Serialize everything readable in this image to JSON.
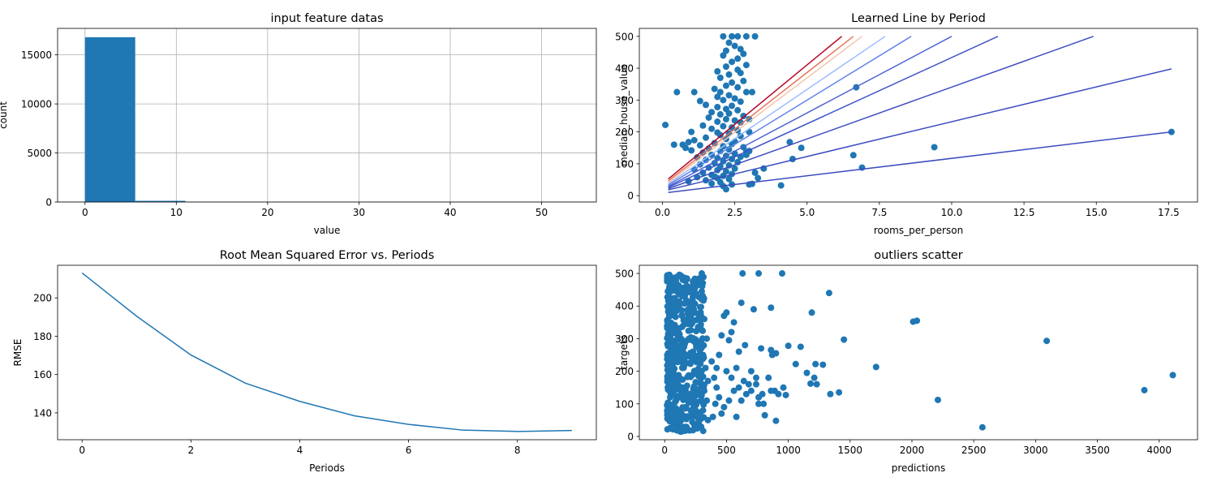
{
  "chart_data": [
    {
      "type": "bar",
      "title": "input feature datas",
      "xlabel": "value",
      "ylabel": "count",
      "xlim": [
        -3,
        56
      ],
      "ylim": [
        0,
        17700
      ],
      "xticks": [
        0,
        10,
        20,
        30,
        40,
        50
      ],
      "yticks": [
        0,
        5000,
        10000,
        15000
      ],
      "grid": true,
      "bins": [
        {
          "x0": 0.0,
          "x1": 5.5,
          "count": 16800
        },
        {
          "x0": 5.5,
          "x1": 11.0,
          "count": 120
        },
        {
          "x0": 11.0,
          "x1": 16.5,
          "count": 12
        },
        {
          "x0": 16.5,
          "x1": 22.0,
          "count": 4
        },
        {
          "x0": 22.0,
          "x1": 27.5,
          "count": 2
        },
        {
          "x0": 27.5,
          "x1": 33.0,
          "count": 1
        },
        {
          "x0": 33.0,
          "x1": 38.5,
          "count": 1
        },
        {
          "x0": 38.5,
          "x1": 44.0,
          "count": 0
        },
        {
          "x0": 44.0,
          "x1": 49.5,
          "count": 0
        },
        {
          "x0": 49.5,
          "x1": 55.0,
          "count": 1
        }
      ],
      "color": "#1f77b4"
    },
    {
      "type": "scatter",
      "title": "Learned Line by Period",
      "xlabel": "rooms_per_person",
      "ylabel": "median_house_value",
      "xlim": [
        -0.8,
        18.5
      ],
      "ylim": [
        -20,
        525
      ],
      "xticks": [
        0.0,
        2.5,
        5.0,
        7.5,
        10.0,
        12.5,
        15.0,
        17.5
      ],
      "xtick_labels": [
        "0.0",
        "2.5",
        "5.0",
        "7.5",
        "10.0",
        "12.5",
        "15.0",
        "17.5"
      ],
      "yticks": [
        0,
        100,
        200,
        300,
        400,
        500
      ],
      "points": [
        [
          2.4,
          500
        ],
        [
          2.6,
          500
        ],
        [
          2.1,
          500
        ],
        [
          2.9,
          500
        ],
        [
          3.2,
          500
        ],
        [
          2.3,
          480
        ],
        [
          2.5,
          470
        ],
        [
          2.7,
          460
        ],
        [
          2.2,
          455
        ],
        [
          2.8,
          445
        ],
        [
          2.1,
          440
        ],
        [
          2.6,
          430
        ],
        [
          2.4,
          420
        ],
        [
          2.9,
          410
        ],
        [
          2.2,
          405
        ],
        [
          2.6,
          395
        ],
        [
          1.9,
          390
        ],
        [
          2.7,
          385
        ],
        [
          2.3,
          380
        ],
        [
          2.0,
          370
        ],
        [
          2.8,
          360
        ],
        [
          2.4,
          355
        ],
        [
          2.2,
          345
        ],
        [
          2.6,
          340
        ],
        [
          1.8,
          335
        ],
        [
          0.5,
          325
        ],
        [
          1.1,
          325
        ],
        [
          2.0,
          325
        ],
        [
          2.9,
          325
        ],
        [
          3.1,
          325
        ],
        [
          2.3,
          315
        ],
        [
          1.9,
          310
        ],
        [
          2.5,
          305
        ],
        [
          2.1,
          300
        ],
        [
          1.3,
          297
        ],
        [
          2.7,
          295
        ],
        [
          1.5,
          285
        ],
        [
          2.4,
          282
        ],
        [
          1.9,
          278
        ],
        [
          2.2,
          272
        ],
        [
          2.6,
          268
        ],
        [
          1.7,
          262
        ],
        [
          2.3,
          258
        ],
        [
          2.0,
          255
        ],
        [
          2.8,
          250
        ],
        [
          1.6,
          245
        ],
        [
          2.2,
          240
        ],
        [
          2.5,
          236
        ],
        [
          1.9,
          232
        ],
        [
          2.7,
          230
        ],
        [
          0.1,
          222
        ],
        [
          1.4,
          220
        ],
        [
          2.1,
          218
        ],
        [
          2.4,
          214
        ],
        [
          1.7,
          210
        ],
        [
          2.6,
          205
        ],
        [
          1.0,
          200
        ],
        [
          1.9,
          198
        ],
        [
          2.3,
          195
        ],
        [
          2.0,
          190
        ],
        [
          2.7,
          187
        ],
        [
          1.5,
          182
        ],
        [
          2.2,
          178
        ],
        [
          1.1,
          174
        ],
        [
          2.5,
          170
        ],
        [
          0.9,
          168
        ],
        [
          1.8,
          165
        ],
        [
          2.4,
          162
        ],
        [
          0.4,
          160
        ],
        [
          0.7,
          160
        ],
        [
          1.3,
          158
        ],
        [
          2.1,
          155
        ],
        [
          2.8,
          152
        ],
        [
          0.8,
          150
        ],
        [
          1.6,
          148
        ],
        [
          2.3,
          145
        ],
        [
          1.0,
          142
        ],
        [
          2.0,
          140
        ],
        [
          2.9,
          138
        ],
        [
          1.4,
          135
        ],
        [
          2.5,
          132
        ],
        [
          1.7,
          128
        ],
        [
          2.2,
          125
        ],
        [
          2.7,
          122
        ],
        [
          1.2,
          120
        ],
        [
          1.9,
          118
        ],
        [
          2.4,
          115
        ],
        [
          1.5,
          112
        ],
        [
          2.1,
          108
        ],
        [
          2.6,
          105
        ],
        [
          1.8,
          102
        ],
        [
          1.3,
          98
        ],
        [
          2.3,
          95
        ],
        [
          2.0,
          92
        ],
        [
          1.6,
          88
        ],
        [
          2.5,
          85
        ],
        [
          1.1,
          82
        ],
        [
          1.9,
          80
        ],
        [
          2.2,
          76
        ],
        [
          1.4,
          72
        ],
        [
          2.4,
          68
        ],
        [
          1.7,
          65
        ],
        [
          2.1,
          62
        ],
        [
          1.2,
          58
        ],
        [
          1.9,
          55
        ],
        [
          2.3,
          52
        ],
        [
          1.5,
          48
        ],
        [
          0.9,
          45
        ],
        [
          2.0,
          42
        ],
        [
          1.7,
          38
        ],
        [
          2.4,
          35
        ],
        [
          2.1,
          30
        ],
        [
          1.8,
          60
        ],
        [
          2.2,
          20
        ],
        [
          3.0,
          240
        ],
        [
          3.0,
          200
        ],
        [
          3.0,
          140
        ],
        [
          2.9,
          128
        ],
        [
          3.2,
          72
        ],
        [
          3.3,
          55
        ],
        [
          3.1,
          37
        ],
        [
          3.0,
          35
        ],
        [
          3.5,
          85
        ],
        [
          4.1,
          32
        ],
        [
          4.4,
          168
        ],
        [
          4.5,
          115
        ],
        [
          4.8,
          150
        ],
        [
          6.6,
          127
        ],
        [
          6.7,
          340
        ],
        [
          6.9,
          88
        ],
        [
          9.4,
          152
        ],
        [
          17.6,
          200
        ]
      ],
      "lines": [
        {
          "color": "#3b4cc0",
          "x": [
            0.2,
            17.6
          ],
          "y": [
            10,
            200
          ]
        },
        {
          "color": "#3b4cc0",
          "x": [
            0.2,
            17.6
          ],
          "y": [
            18,
            398
          ]
        },
        {
          "color": "#3b4cc0",
          "x": [
            0.2,
            14.9
          ],
          "y": [
            22,
            500
          ]
        },
        {
          "color": "#4055c8",
          "x": [
            0.2,
            11.6
          ],
          "y": [
            26,
            500
          ]
        },
        {
          "color": "#4a63d3",
          "x": [
            0.2,
            10.0
          ],
          "y": [
            29,
            500
          ]
        },
        {
          "color": "#6384eb",
          "x": [
            0.2,
            8.6
          ],
          "y": [
            33,
            500
          ]
        },
        {
          "color": "#9bbcff",
          "x": [
            0.2,
            7.7
          ],
          "y": [
            37,
            500
          ]
        },
        {
          "color": "#f4c5ad",
          "x": [
            0.2,
            6.9
          ],
          "y": [
            41,
            500
          ]
        },
        {
          "color": "#e7745b",
          "x": [
            0.2,
            6.6
          ],
          "y": [
            46,
            500
          ]
        },
        {
          "color": "#b40426",
          "x": [
            0.2,
            6.2
          ],
          "y": [
            52,
            500
          ]
        }
      ],
      "color": "#1f77b4"
    },
    {
      "type": "line",
      "title": "Root Mean Squared Error vs. Periods",
      "xlabel": "Periods",
      "ylabel": "RMSE",
      "xlim": [
        -0.45,
        9.45
      ],
      "ylim": [
        126,
        217
      ],
      "xticks": [
        0,
        2,
        4,
        6,
        8
      ],
      "yticks": [
        140,
        160,
        180,
        200
      ],
      "x": [
        0,
        1,
        2,
        3,
        4,
        5,
        6,
        7,
        8,
        9
      ],
      "y": [
        213.0,
        190.5,
        170.2,
        155.5,
        146.0,
        138.5,
        134.0,
        131.0,
        130.3,
        130.8
      ],
      "color": "#1f77b4"
    },
    {
      "type": "scatter",
      "title": "outliers scatter",
      "xlabel": "predictions",
      "ylabel": "targets",
      "xlim": [
        -205,
        4310
      ],
      "ylim": [
        -10,
        525
      ],
      "xticks": [
        0,
        500,
        1000,
        1500,
        2000,
        2500,
        3000,
        3500,
        4000
      ],
      "yticks": [
        0,
        100,
        200,
        300,
        400,
        500
      ],
      "points": [
        [
          630,
          500
        ],
        [
          760,
          500
        ],
        [
          950,
          500
        ],
        [
          620,
          410
        ],
        [
          720,
          390
        ],
        [
          860,
          395
        ],
        [
          1190,
          380
        ],
        [
          1330,
          440
        ],
        [
          2010,
          352
        ],
        [
          2040,
          355
        ],
        [
          3090,
          293
        ],
        [
          4110,
          188
        ],
        [
          3880,
          142
        ],
        [
          2570,
          28
        ],
        [
          2210,
          112
        ],
        [
          1710,
          213
        ],
        [
          1450,
          297
        ],
        [
          1280,
          220
        ],
        [
          1220,
          222
        ],
        [
          1060,
          222
        ],
        [
          1000,
          278
        ],
        [
          980,
          127
        ],
        [
          1100,
          275
        ],
        [
          1180,
          162
        ],
        [
          1210,
          180
        ],
        [
          1230,
          160
        ],
        [
          1340,
          130
        ],
        [
          1410,
          135
        ],
        [
          1150,
          195
        ],
        [
          890,
          140
        ],
        [
          920,
          130
        ],
        [
          960,
          150
        ],
        [
          860,
          265
        ],
        [
          870,
          250
        ],
        [
          900,
          255
        ],
        [
          780,
          270
        ],
        [
          740,
          180
        ],
        [
          700,
          200
        ],
        [
          680,
          160
        ],
        [
          800,
          100
        ],
        [
          810,
          65
        ],
        [
          840,
          180
        ],
        [
          860,
          140
        ],
        [
          900,
          48
        ],
        [
          500,
          380
        ],
        [
          540,
          320
        ],
        [
          560,
          350
        ],
        [
          520,
          295
        ],
        [
          480,
          370
        ],
        [
          460,
          310
        ],
        [
          440,
          250
        ],
        [
          420,
          210
        ],
        [
          600,
          260
        ],
        [
          640,
          170
        ],
        [
          560,
          140
        ],
        [
          520,
          110
        ],
        [
          480,
          90
        ],
        [
          460,
          70
        ],
        [
          500,
          200
        ],
        [
          580,
          60
        ],
        [
          620,
          110
        ],
        [
          660,
          130
        ],
        [
          700,
          140
        ],
        [
          760,
          120
        ],
        [
          740,
          160
        ],
        [
          760,
          100
        ],
        [
          790,
          130
        ],
        [
          420,
          150
        ],
        [
          440,
          120
        ],
        [
          400,
          180
        ],
        [
          380,
          230
        ],
        [
          410,
          100
        ],
        [
          390,
          60
        ],
        [
          540,
          180
        ],
        [
          580,
          210
        ],
        [
          600,
          150
        ],
        [
          650,
          280
        ],
        [
          300,
          500
        ],
        [
          300,
          420
        ],
        [
          320,
          360
        ],
        [
          340,
          300
        ],
        [
          310,
          250
        ],
        [
          330,
          210
        ],
        [
          350,
          170
        ],
        [
          320,
          140
        ],
        [
          340,
          110
        ],
        [
          310,
          80
        ],
        [
          350,
          50
        ]
      ],
      "dense_cluster": {
        "x_range": [
          20,
          320
        ],
        "y_range": [
          15,
          500
        ]
      },
      "color": "#1f77b4"
    }
  ]
}
